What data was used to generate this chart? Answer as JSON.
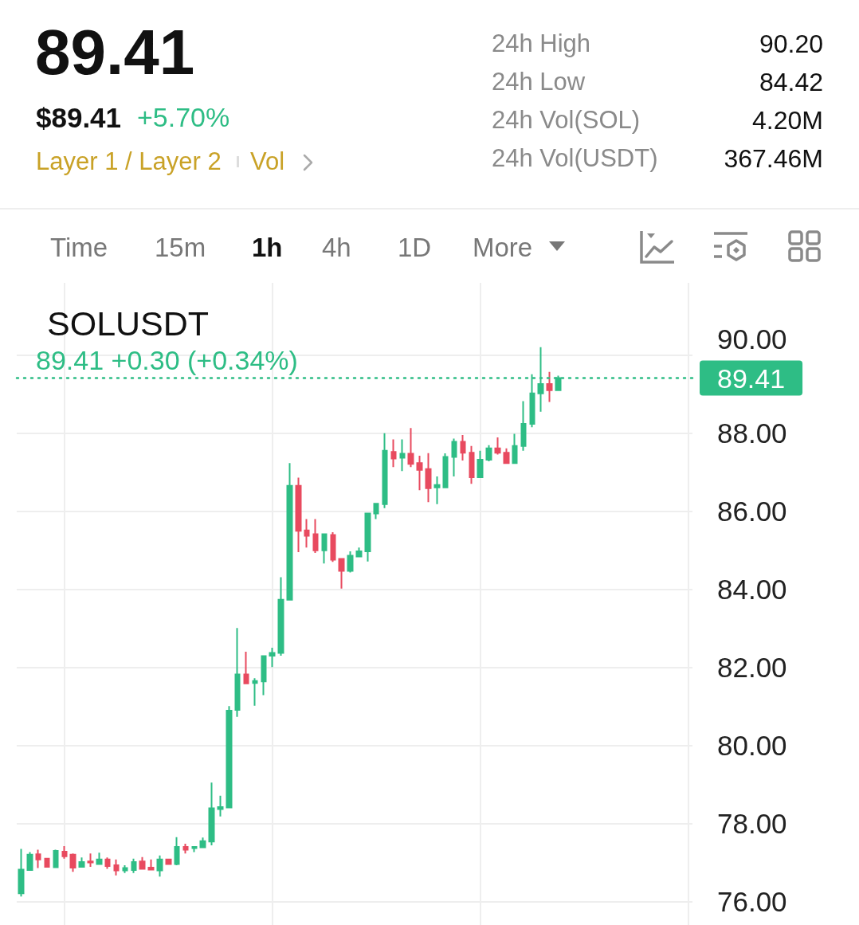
{
  "chart_data": [
    {
      "type": "other",
      "title": "89.41",
      "annotations": [
        "$89.41",
        "+5.70%",
        "Layer 1 / Layer 2",
        "Vol",
        "24h High",
        "90.20",
        "24h Low",
        "84.42",
        "24h Vol(SOL)",
        "4.20M",
        "24h Vol(USDT)",
        "367.46M",
        "Time",
        "15m",
        "1h",
        "4h",
        "1D",
        "More"
      ]
    },
    {
      "type": "candlestick",
      "title": "SOLUSDT",
      "categories": [
        null,
        null,
        null,
        null,
        null,
        null,
        null,
        null,
        null,
        null,
        null,
        null,
        null,
        null,
        null,
        null,
        null,
        null,
        null,
        null,
        null,
        null,
        null,
        null,
        null,
        null,
        null,
        null,
        null,
        null,
        null,
        null,
        null,
        null,
        null,
        null,
        null,
        null,
        null,
        null,
        null,
        null,
        null,
        null,
        null,
        null,
        null,
        null,
        null,
        null,
        null,
        null,
        null,
        null,
        null,
        null,
        null,
        null,
        null,
        null,
        null,
        null,
        null,
        null,
        null,
        null,
        null,
        null,
        null,
        null,
        null,
        null,
        null,
        null,
        null,
        null,
        null,
        null
      ],
      "ohlc": [
        [
          76.21,
          77.35,
          76.13,
          76.82
        ],
        [
          76.81,
          77.27,
          76.81,
          77.2
        ],
        [
          77.21,
          77.33,
          76.86,
          77.08
        ],
        [
          77.1,
          77.11,
          76.89,
          76.89
        ],
        [
          76.88,
          77.33,
          76.88,
          77.3
        ],
        [
          77.28,
          77.42,
          77.1,
          77.16
        ],
        [
          77.2,
          77.23,
          76.76,
          76.87
        ],
        [
          76.89,
          77.13,
          76.89,
          77.01
        ],
        [
          77.03,
          77.23,
          76.89,
          77.0
        ],
        [
          76.96,
          77.25,
          76.96,
          77.08
        ],
        [
          77.08,
          77.13,
          76.84,
          76.91
        ],
        [
          76.93,
          77.08,
          76.67,
          76.8
        ],
        [
          76.8,
          76.93,
          76.73,
          76.86
        ],
        [
          76.81,
          77.1,
          76.73,
          77.01
        ],
        [
          77.03,
          77.14,
          76.82,
          76.84
        ],
        [
          76.87,
          77.08,
          76.8,
          76.82
        ],
        [
          76.8,
          77.18,
          76.64,
          77.08
        ],
        [
          77.08,
          77.1,
          76.95,
          76.96
        ],
        [
          76.96,
          77.65,
          76.93,
          77.4
        ],
        [
          77.4,
          77.48,
          77.23,
          77.33
        ],
        [
          77.37,
          77.4,
          77.27,
          77.4
        ],
        [
          77.39,
          77.64,
          77.39,
          77.55
        ],
        [
          77.54,
          79.05,
          77.44,
          78.39
        ],
        [
          78.37,
          78.71,
          78.18,
          78.42
        ],
        [
          78.41,
          81.01,
          78.41,
          80.89
        ],
        [
          80.91,
          83.01,
          80.73,
          81.82
        ],
        [
          81.82,
          82.4,
          81.59,
          81.59
        ],
        [
          81.6,
          81.72,
          81.02,
          81.65
        ],
        [
          81.64,
          82.31,
          81.29,
          82.29
        ],
        [
          82.3,
          82.5,
          82.01,
          82.37
        ],
        [
          82.37,
          84.31,
          82.3,
          83.73
        ],
        [
          83.73,
          87.23,
          83.73,
          86.65
        ],
        [
          86.65,
          86.86,
          84.95,
          85.5
        ],
        [
          85.51,
          85.8,
          85.07,
          85.37
        ],
        [
          85.41,
          85.8,
          84.93,
          85.0
        ],
        [
          85.0,
          85.43,
          84.66,
          85.41
        ],
        [
          85.39,
          85.46,
          84.7,
          84.76
        ],
        [
          84.78,
          84.78,
          84.02,
          84.47
        ],
        [
          84.47,
          84.97,
          84.43,
          84.86
        ],
        [
          84.84,
          85.07,
          84.84,
          84.97
        ],
        [
          84.97,
          85.94,
          84.71,
          85.94
        ],
        [
          85.94,
          86.21,
          85.8,
          86.19
        ],
        [
          86.18,
          88.0,
          86.08,
          87.55
        ],
        [
          87.52,
          87.84,
          87.13,
          87.35
        ],
        [
          87.37,
          87.84,
          87.03,
          87.47
        ],
        [
          87.47,
          88.13,
          87.13,
          87.21
        ],
        [
          87.23,
          87.42,
          86.54,
          87.06
        ],
        [
          87.08,
          87.49,
          86.23,
          86.59
        ],
        [
          86.61,
          86.89,
          86.18,
          86.67
        ],
        [
          86.61,
          87.48,
          86.61,
          87.39
        ],
        [
          87.39,
          87.86,
          86.89,
          87.78
        ],
        [
          87.78,
          87.95,
          87.3,
          87.5
        ],
        [
          87.5,
          87.67,
          86.7,
          86.87
        ],
        [
          86.87,
          87.55,
          86.87,
          87.32
        ],
        [
          87.32,
          87.69,
          87.28,
          87.61
        ],
        [
          87.61,
          87.89,
          87.45,
          87.5
        ],
        [
          87.5,
          87.61,
          87.22,
          87.23
        ],
        [
          87.23,
          87.98,
          87.23,
          87.67
        ],
        [
          87.67,
          88.82,
          87.55,
          88.24
        ],
        [
          88.24,
          89.51,
          88.15,
          89.02
        ],
        [
          89.02,
          90.2,
          88.55,
          89.26
        ],
        [
          89.26,
          89.57,
          88.8,
          89.1
        ],
        [
          89.1,
          89.47,
          89.1,
          89.41
        ],
        null,
        null,
        null,
        null,
        null,
        null,
        null,
        null,
        null,
        null,
        null,
        null,
        null,
        null,
        null
      ],
      "colors": [
        "#2ebd85",
        "#2ebd85",
        "#e84a5f",
        "#e84a5f",
        "#2ebd85",
        "#e84a5f",
        "#e84a5f",
        "#2ebd85",
        "#e84a5f",
        "#2ebd85",
        "#e84a5f",
        "#e84a5f",
        "#2ebd85",
        "#2ebd85",
        "#e84a5f",
        "#e84a5f",
        "#2ebd85",
        "#e84a5f",
        "#2ebd85",
        "#e84a5f",
        "#2ebd85",
        "#2ebd85",
        "#2ebd85",
        "#2ebd85",
        "#2ebd85",
        "#2ebd85",
        "#e84a5f",
        "#2ebd85",
        "#2ebd85",
        "#2ebd85",
        "#2ebd85",
        "#2ebd85",
        "#e84a5f",
        "#e84a5f",
        "#e84a5f",
        "#2ebd85",
        "#e84a5f",
        "#e84a5f",
        "#2ebd85",
        "#2ebd85",
        "#2ebd85",
        "#2ebd85",
        "#2ebd85",
        "#e84a5f",
        "#2ebd85",
        "#e84a5f",
        "#e84a5f",
        "#e84a5f",
        "#2ebd85",
        "#2ebd85",
        "#2ebd85",
        "#e84a5f",
        "#e84a5f",
        "#2ebd85",
        "#2ebd85",
        "#e84a5f",
        "#e84a5f",
        "#2ebd85",
        "#2ebd85",
        "#2ebd85",
        "#2ebd85",
        "#e84a5f",
        "#2ebd85",
        null,
        null,
        null,
        null,
        null,
        null,
        null,
        null,
        null,
        null,
        null,
        null,
        null,
        null,
        null
      ],
      "ylim": [
        75.4,
        91.85
      ],
      "yticks": [
        {
          "value": 76,
          "label": "76.00"
        },
        {
          "value": 78,
          "label": "78.00"
        },
        {
          "value": 80,
          "label": "80.00"
        },
        {
          "value": 82,
          "label": "82.00"
        },
        {
          "value": 84,
          "label": "84.00"
        },
        {
          "value": 86,
          "label": "86.00"
        },
        {
          "value": 88,
          "label": "88.00"
        },
        {
          "value": 90,
          "label": "90.00"
        }
      ],
      "tick_labels": "y",
      "grid": true,
      "ref_lines": [
        {
          "axis": "y",
          "value": 89.41,
          "label": "89.41 +0.30 (+0.34%)",
          "color": "#2ebd85",
          "line_style": "dotted"
        }
      ],
      "annotations": [
        "89.41"
      ]
    }
  ]
}
